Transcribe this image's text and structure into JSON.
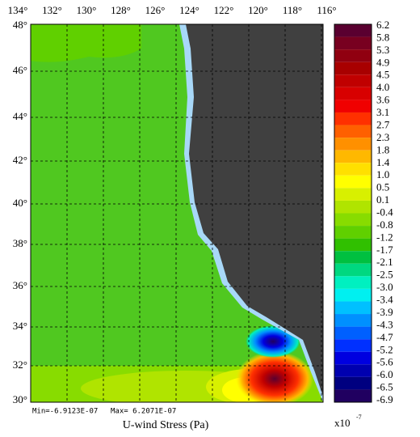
{
  "title": "U-wind Stress (Pa)",
  "stats": {
    "min": "Min=-6.9123E-07",
    "max": "Max= 6.2071E-07"
  },
  "lon_labels": [
    "134°",
    "132°",
    "130°",
    "128°",
    "126°",
    "124°",
    "122°",
    "120°",
    "118°",
    "116°"
  ],
  "lat_labels": [
    "48°",
    "46°",
    "44°",
    "42°",
    "40°",
    "38°",
    "36°",
    "34°",
    "32°",
    "30°"
  ],
  "colorbar": {
    "labels": [
      "6.2",
      "5.8",
      "5.3",
      "4.9",
      "4.5",
      "4.0",
      "3.6",
      "3.1",
      "2.7",
      "2.3",
      "1.8",
      "1.4",
      "1.0",
      "0.5",
      "0.1",
      "-0.4",
      "-0.8",
      "-1.2",
      "-1.7",
      "-2.1",
      "-2.5",
      "-3.0",
      "-3.4",
      "-3.9",
      "-4.3",
      "-4.7",
      "-5.2",
      "-5.6",
      "-6.0",
      "-6.5",
      "-6.9"
    ],
    "colors": [
      "#5a0030",
      "#780020",
      "#900010",
      "#a80000",
      "#c00000",
      "#d80000",
      "#f00000",
      "#ff3000",
      "#ff6000",
      "#ff9000",
      "#ffb800",
      "#ffe000",
      "#ffff00",
      "#d8f000",
      "#b0e400",
      "#88dc00",
      "#60d000",
      "#30c000",
      "#00c040",
      "#00d880",
      "#00f0c0",
      "#00f0f0",
      "#00c0ff",
      "#0090ff",
      "#0060ff",
      "#0030ff",
      "#0000e0",
      "#0000b0",
      "#000080",
      "#200060"
    ],
    "scale_label": "x10",
    "scale_exponent": "-7"
  }
}
